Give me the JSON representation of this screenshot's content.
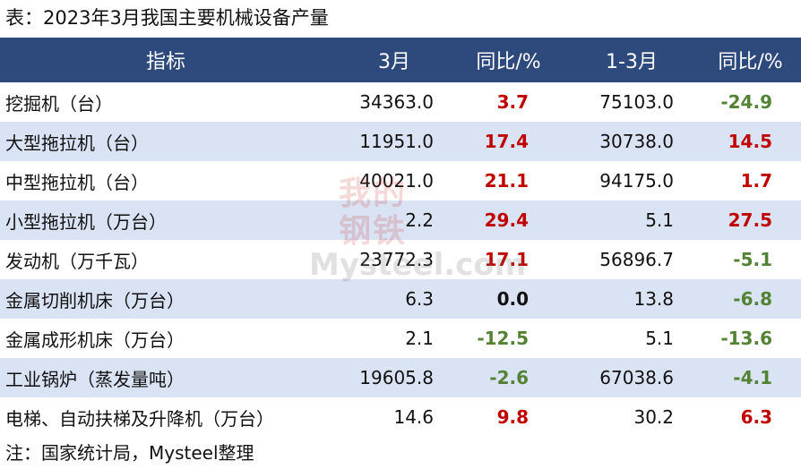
{
  "title": "表：2023年3月我国主要机械设备产量",
  "table": {
    "header": [
      "指标",
      "3月",
      "同比/%",
      "1-3月",
      "同比/%"
    ],
    "rows": [
      [
        "挖掘机（台）",
        "34363.0",
        "3.7",
        "75103.0",
        "-24.9"
      ],
      [
        "大型拖拉机（台）",
        "11951.0",
        "17.4",
        "30738.0",
        "14.5"
      ],
      [
        "中型拖拉机（台）",
        "40021.0",
        "21.1",
        "94175.0",
        "1.7"
      ],
      [
        "小型拖拉机（万台）",
        "2.2",
        "29.4",
        "5.1",
        "27.5"
      ],
      [
        "发动机（万千瓦）",
        "23772.3",
        "17.1",
        "56896.7",
        "-5.1"
      ],
      [
        "金属切削机床（万台）",
        "6.3",
        "0.0",
        "13.8",
        "-6.8"
      ],
      [
        "金属成形机床（万台）",
        "2.1",
        "-12.5",
        "5.1",
        "-13.6"
      ],
      [
        "工业锅炉（蒸发量吨）",
        "19605.8",
        "-2.6",
        "67038.6",
        "-4.1"
      ],
      [
        "电梯、自动扶梯及升降机（万台）",
        "14.6",
        "9.8",
        "30.2",
        "6.3"
      ]
    ]
  },
  "note": "注：国家统计局，Mysteel整理",
  "watermark": {
    "logo": "我的钢铁",
    "site": "Mysteel.com"
  }
}
